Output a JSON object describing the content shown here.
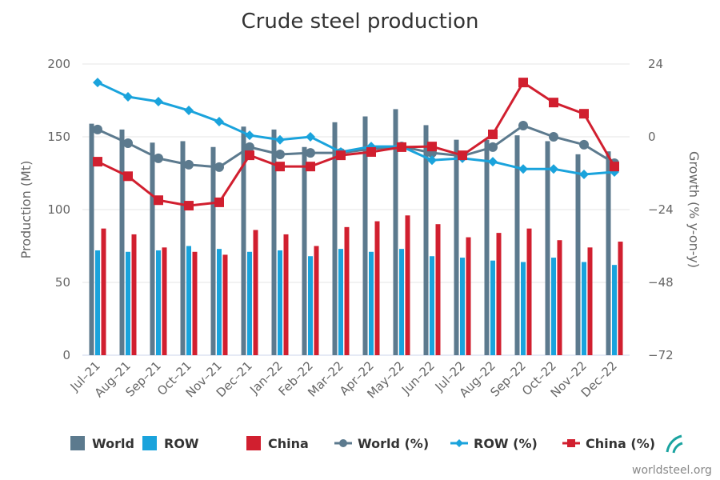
{
  "chart_data": {
    "type": "bar",
    "title": "Crude steel production",
    "xlabel": "",
    "ylabel": "Production (Mt)",
    "y2label": "Growth (% y-on-y)",
    "ylim": [
      0,
      200
    ],
    "y2lim": [
      -72,
      24
    ],
    "yticks": [
      "0",
      "50",
      "100",
      "150",
      "200"
    ],
    "y2ticks": [
      "-72",
      "-48",
      "-24",
      "0",
      "24"
    ],
    "grid": true,
    "legend_position": "bottom",
    "categories": [
      "Jul-21",
      "Aug-21",
      "Sep-21",
      "Oct-21",
      "Nov-21",
      "Dec-21",
      "Jan-22",
      "Feb-22",
      "Mar-22",
      "Apr-22",
      "May-22",
      "Jun-22",
      "Jul-22",
      "Aug-22",
      "Sep-22",
      "Oct-22",
      "Nov-22",
      "Dec-22"
    ],
    "series": [
      {
        "name": "World",
        "type": "bar",
        "axis": "left",
        "color": "#5c7a8e",
        "values": [
          159,
          155,
          146,
          147,
          143,
          157,
          155,
          143,
          160,
          164,
          169,
          158,
          148,
          148,
          151,
          147,
          138,
          140
        ]
      },
      {
        "name": "ROW",
        "type": "bar",
        "axis": "left",
        "color": "#1aa3dc",
        "values": [
          72,
          71,
          72,
          75,
          73,
          71,
          72,
          68,
          73,
          71,
          73,
          68,
          67,
          65,
          64,
          67,
          64,
          62
        ]
      },
      {
        "name": "China",
        "type": "bar",
        "axis": "left",
        "color": "#d11f2f",
        "values": [
          87,
          83,
          74,
          71,
          69,
          86,
          83,
          75,
          88,
          92,
          96,
          90,
          81,
          84,
          87,
          79,
          74,
          78
        ]
      },
      {
        "name": "World (%)",
        "type": "line",
        "axis": "right",
        "color": "#5c7a8e",
        "marker": "circle",
        "values": [
          2.4,
          -2.1,
          -7.1,
          -9.2,
          -10.0,
          -3.4,
          -5.8,
          -5.3,
          -5.3,
          -4.0,
          -3.2,
          -5.3,
          -6.3,
          -3.4,
          3.7,
          0.0,
          -2.6,
          -8.7
        ]
      },
      {
        "name": "ROW (%)",
        "type": "line",
        "axis": "right",
        "color": "#1aa3dc",
        "marker": "diamond",
        "values": [
          17.9,
          13.2,
          11.6,
          8.7,
          5.0,
          0.5,
          -1.0,
          0.0,
          -5.0,
          -3.2,
          -3.2,
          -7.7,
          -7.1,
          -8.2,
          -10.6,
          -10.6,
          -12.4,
          -11.6
        ]
      },
      {
        "name": "China (%)",
        "type": "line",
        "axis": "right",
        "color": "#d11f2f",
        "marker": "square",
        "values": [
          -8.2,
          -13.0,
          -20.9,
          -22.7,
          -21.6,
          -6.1,
          -9.8,
          -9.8,
          -6.1,
          -5.0,
          -3.4,
          -3.2,
          -6.1,
          0.8,
          17.9,
          11.3,
          7.6,
          -9.8
        ]
      }
    ]
  },
  "source": "worldsteel.org"
}
